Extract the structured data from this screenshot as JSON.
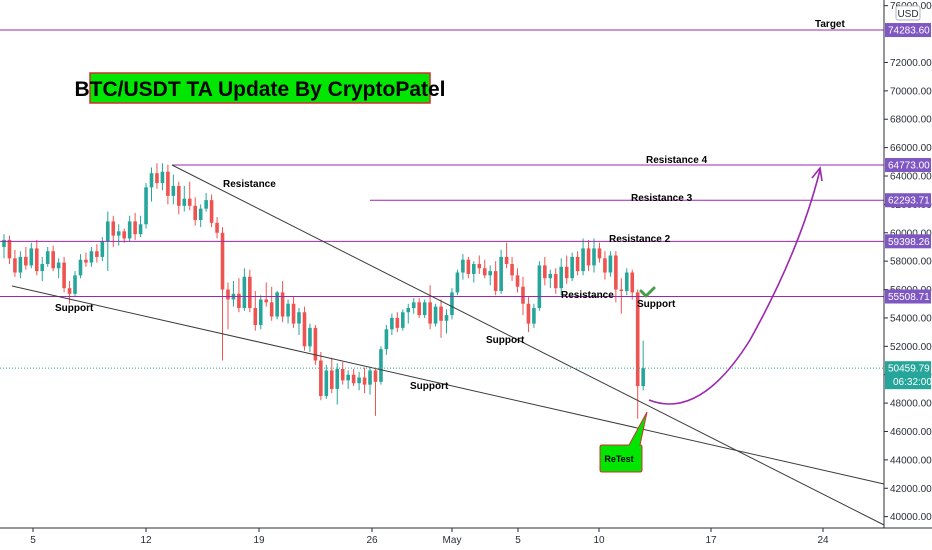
{
  "chart_data": {
    "type": "candlestick",
    "title": "BTC/USDT TA Update By CryptoPatel",
    "currency": "USD",
    "x_ticks": [
      "5",
      "12",
      "19",
      "26",
      "May",
      "5",
      "10",
      "17",
      "24"
    ],
    "y_ticks": [
      40000,
      42000,
      44000,
      46000,
      48000,
      50000,
      52000,
      54000,
      56000,
      58000,
      60000,
      62000,
      64000,
      66000,
      68000,
      70000,
      72000,
      76000
    ],
    "y_range": [
      39200,
      76400
    ],
    "levels": [
      {
        "label": "Target",
        "value": 74283.6,
        "price_label": "74283.60"
      },
      {
        "label": "Resistance 4",
        "value": 64773.0,
        "price_label": "64773.00"
      },
      {
        "label": "Resistance 3",
        "value": 62293.71,
        "price_label": "62293.71"
      },
      {
        "label": "Resistance 2",
        "value": 59398.26,
        "price_label": "59398.26"
      },
      {
        "label": "Resistance",
        "value": 55508.71,
        "price_label": "55508.71"
      }
    ],
    "level_labels": {
      "support_level": "Support"
    },
    "current_price": {
      "value": 50459.79,
      "price_label": "50459.79",
      "countdown": "06:32:00"
    },
    "annotations": {
      "resistance_trend": "Resistance",
      "support_left": "Support",
      "support_mid": "Support",
      "support_bottom": "Support",
      "retest": "ReTest"
    },
    "candles": [
      {
        "o": 59000,
        "h": 59900,
        "l": 58200,
        "c": 59500
      },
      {
        "o": 59500,
        "h": 59800,
        "l": 57800,
        "c": 58200
      },
      {
        "o": 58200,
        "h": 58800,
        "l": 56900,
        "c": 57200
      },
      {
        "o": 57200,
        "h": 58700,
        "l": 56800,
        "c": 58300
      },
      {
        "o": 58300,
        "h": 59000,
        "l": 57400,
        "c": 57700
      },
      {
        "o": 57700,
        "h": 59300,
        "l": 57500,
        "c": 58900
      },
      {
        "o": 58900,
        "h": 59500,
        "l": 57000,
        "c": 57300
      },
      {
        "o": 57300,
        "h": 58300,
        "l": 56600,
        "c": 57800
      },
      {
        "o": 57800,
        "h": 59000,
        "l": 57600,
        "c": 58700
      },
      {
        "o": 58700,
        "h": 59100,
        "l": 57300,
        "c": 57500
      },
      {
        "o": 57500,
        "h": 58200,
        "l": 56800,
        "c": 57900
      },
      {
        "o": 57900,
        "h": 58300,
        "l": 55800,
        "c": 56100
      },
      {
        "o": 56100,
        "h": 56600,
        "l": 55000,
        "c": 55700
      },
      {
        "o": 55700,
        "h": 57300,
        "l": 55500,
        "c": 57000
      },
      {
        "o": 57000,
        "h": 58500,
        "l": 56800,
        "c": 58100
      },
      {
        "o": 58100,
        "h": 58600,
        "l": 57600,
        "c": 57900
      },
      {
        "o": 57900,
        "h": 59000,
        "l": 57600,
        "c": 58700
      },
      {
        "o": 58700,
        "h": 59200,
        "l": 57900,
        "c": 58300
      },
      {
        "o": 58300,
        "h": 59700,
        "l": 58000,
        "c": 59400
      },
      {
        "o": 59400,
        "h": 61500,
        "l": 57300,
        "c": 60800
      },
      {
        "o": 60800,
        "h": 61200,
        "l": 59000,
        "c": 59800
      },
      {
        "o": 59800,
        "h": 60600,
        "l": 59100,
        "c": 60100
      },
      {
        "o": 60100,
        "h": 60300,
        "l": 59300,
        "c": 59600
      },
      {
        "o": 59600,
        "h": 61200,
        "l": 59400,
        "c": 60800
      },
      {
        "o": 60800,
        "h": 61400,
        "l": 59500,
        "c": 59900
      },
      {
        "o": 59900,
        "h": 61200,
        "l": 59700,
        "c": 60600
      },
      {
        "o": 60600,
        "h": 63500,
        "l": 60300,
        "c": 63200
      },
      {
        "o": 63200,
        "h": 64600,
        "l": 62200,
        "c": 64200
      },
      {
        "o": 64200,
        "h": 64900,
        "l": 63100,
        "c": 63500
      },
      {
        "o": 63500,
        "h": 64900,
        "l": 63000,
        "c": 64300
      },
      {
        "o": 64300,
        "h": 64800,
        "l": 62000,
        "c": 62600
      },
      {
        "o": 62600,
        "h": 64100,
        "l": 62000,
        "c": 63300
      },
      {
        "o": 63300,
        "h": 63600,
        "l": 61300,
        "c": 61900
      },
      {
        "o": 61900,
        "h": 63300,
        "l": 61500,
        "c": 62400
      },
      {
        "o": 62400,
        "h": 63600,
        "l": 61600,
        "c": 61900
      },
      {
        "o": 61900,
        "h": 62500,
        "l": 60500,
        "c": 60900
      },
      {
        "o": 60900,
        "h": 62000,
        "l": 60400,
        "c": 61700
      },
      {
        "o": 61700,
        "h": 62800,
        "l": 61500,
        "c": 62300
      },
      {
        "o": 62300,
        "h": 62700,
        "l": 60400,
        "c": 60700
      },
      {
        "o": 60700,
        "h": 61100,
        "l": 59600,
        "c": 60000
      },
      {
        "o": 60000,
        "h": 60400,
        "l": 51000,
        "c": 56000
      },
      {
        "o": 56000,
        "h": 56500,
        "l": 53200,
        "c": 55300
      },
      {
        "o": 55300,
        "h": 56600,
        "l": 54800,
        "c": 55700
      },
      {
        "o": 55700,
        "h": 56800,
        "l": 54400,
        "c": 54700
      },
      {
        "o": 54700,
        "h": 57500,
        "l": 54500,
        "c": 56900
      },
      {
        "o": 56900,
        "h": 57400,
        "l": 54400,
        "c": 54700
      },
      {
        "o": 54700,
        "h": 55900,
        "l": 53100,
        "c": 53500
      },
      {
        "o": 53500,
        "h": 55600,
        "l": 53200,
        "c": 55300
      },
      {
        "o": 55300,
        "h": 56500,
        "l": 54800,
        "c": 55100
      },
      {
        "o": 55100,
        "h": 56200,
        "l": 53800,
        "c": 54100
      },
      {
        "o": 54100,
        "h": 55900,
        "l": 53900,
        "c": 55800
      },
      {
        "o": 55800,
        "h": 56600,
        "l": 53700,
        "c": 54100
      },
      {
        "o": 54100,
        "h": 55300,
        "l": 53600,
        "c": 55000
      },
      {
        "o": 55000,
        "h": 55500,
        "l": 53300,
        "c": 53600
      },
      {
        "o": 53600,
        "h": 54700,
        "l": 52800,
        "c": 54400
      },
      {
        "o": 54400,
        "h": 54800,
        "l": 51700,
        "c": 52000
      },
      {
        "o": 52000,
        "h": 53600,
        "l": 51600,
        "c": 53300
      },
      {
        "o": 53300,
        "h": 53500,
        "l": 50700,
        "c": 51000
      },
      {
        "o": 51000,
        "h": 51600,
        "l": 48200,
        "c": 48500
      },
      {
        "o": 48500,
        "h": 50700,
        "l": 48300,
        "c": 50300
      },
      {
        "o": 50300,
        "h": 51200,
        "l": 48700,
        "c": 49000
      },
      {
        "o": 49000,
        "h": 50800,
        "l": 47900,
        "c": 50400
      },
      {
        "o": 50400,
        "h": 50900,
        "l": 49300,
        "c": 49600
      },
      {
        "o": 49600,
        "h": 50300,
        "l": 49000,
        "c": 50000
      },
      {
        "o": 50000,
        "h": 50400,
        "l": 49200,
        "c": 49400
      },
      {
        "o": 49400,
        "h": 50200,
        "l": 48900,
        "c": 49800
      },
      {
        "o": 49800,
        "h": 50500,
        "l": 48700,
        "c": 49300
      },
      {
        "o": 49300,
        "h": 50500,
        "l": 48600,
        "c": 50300
      },
      {
        "o": 50300,
        "h": 50500,
        "l": 47100,
        "c": 49500
      },
      {
        "o": 49500,
        "h": 52000,
        "l": 49300,
        "c": 51800
      },
      {
        "o": 51800,
        "h": 53500,
        "l": 51400,
        "c": 53200
      },
      {
        "o": 53200,
        "h": 54300,
        "l": 52800,
        "c": 54000
      },
      {
        "o": 54000,
        "h": 54400,
        "l": 53000,
        "c": 53300
      },
      {
        "o": 53300,
        "h": 54600,
        "l": 53100,
        "c": 54400
      },
      {
        "o": 54400,
        "h": 55000,
        "l": 53600,
        "c": 54700
      },
      {
        "o": 54700,
        "h": 55400,
        "l": 54300,
        "c": 55100
      },
      {
        "o": 55100,
        "h": 55400,
        "l": 54000,
        "c": 54200
      },
      {
        "o": 54200,
        "h": 55300,
        "l": 54000,
        "c": 55100
      },
      {
        "o": 55100,
        "h": 56300,
        "l": 53200,
        "c": 53600
      },
      {
        "o": 53600,
        "h": 55000,
        "l": 53400,
        "c": 54800
      },
      {
        "o": 54800,
        "h": 55300,
        "l": 52600,
        "c": 53800
      },
      {
        "o": 53800,
        "h": 54600,
        "l": 52900,
        "c": 54200
      },
      {
        "o": 54200,
        "h": 56100,
        "l": 53900,
        "c": 55800
      },
      {
        "o": 55800,
        "h": 57400,
        "l": 55600,
        "c": 57200
      },
      {
        "o": 57200,
        "h": 58500,
        "l": 56700,
        "c": 58100
      },
      {
        "o": 58100,
        "h": 58300,
        "l": 56800,
        "c": 57100
      },
      {
        "o": 57100,
        "h": 58000,
        "l": 56500,
        "c": 57800
      },
      {
        "o": 57800,
        "h": 58400,
        "l": 57100,
        "c": 57500
      },
      {
        "o": 57500,
        "h": 58100,
        "l": 56800,
        "c": 57000
      },
      {
        "o": 57000,
        "h": 57700,
        "l": 56300,
        "c": 57300
      },
      {
        "o": 57300,
        "h": 58000,
        "l": 55600,
        "c": 55900
      },
      {
        "o": 55900,
        "h": 58800,
        "l": 55700,
        "c": 58300
      },
      {
        "o": 58300,
        "h": 59300,
        "l": 57500,
        "c": 57800
      },
      {
        "o": 57800,
        "h": 58300,
        "l": 56600,
        "c": 57000
      },
      {
        "o": 57000,
        "h": 57500,
        "l": 55800,
        "c": 56200
      },
      {
        "o": 56200,
        "h": 56900,
        "l": 54200,
        "c": 55000
      },
      {
        "o": 55000,
        "h": 55500,
        "l": 53000,
        "c": 53600
      },
      {
        "o": 53600,
        "h": 55000,
        "l": 53300,
        "c": 54700
      },
      {
        "o": 54700,
        "h": 58000,
        "l": 54500,
        "c": 57700
      },
      {
        "o": 57700,
        "h": 58300,
        "l": 56300,
        "c": 56800
      },
      {
        "o": 56800,
        "h": 57400,
        "l": 56100,
        "c": 57100
      },
      {
        "o": 57100,
        "h": 57500,
        "l": 55700,
        "c": 56100
      },
      {
        "o": 56100,
        "h": 58200,
        "l": 55600,
        "c": 57600
      },
      {
        "o": 57600,
        "h": 58400,
        "l": 56400,
        "c": 56800
      },
      {
        "o": 56800,
        "h": 58600,
        "l": 56600,
        "c": 58300
      },
      {
        "o": 58300,
        "h": 58700,
        "l": 57000,
        "c": 57300
      },
      {
        "o": 57300,
        "h": 59600,
        "l": 57000,
        "c": 58900
      },
      {
        "o": 58900,
        "h": 59500,
        "l": 57300,
        "c": 57700
      },
      {
        "o": 57700,
        "h": 59600,
        "l": 57200,
        "c": 58900
      },
      {
        "o": 58900,
        "h": 59300,
        "l": 57900,
        "c": 58200
      },
      {
        "o": 58200,
        "h": 58700,
        "l": 56700,
        "c": 57200
      },
      {
        "o": 57200,
        "h": 58700,
        "l": 56900,
        "c": 58400
      },
      {
        "o": 58400,
        "h": 58700,
        "l": 55100,
        "c": 56000
      },
      {
        "o": 56000,
        "h": 56800,
        "l": 54300,
        "c": 55900
      },
      {
        "o": 55900,
        "h": 57500,
        "l": 55600,
        "c": 57200
      },
      {
        "o": 57200,
        "h": 57400,
        "l": 55300,
        "c": 55800
      },
      {
        "o": 55800,
        "h": 56000,
        "l": 46900,
        "c": 49200
      },
      {
        "o": 49200,
        "h": 52400,
        "l": 48900,
        "c": 50460
      }
    ]
  }
}
